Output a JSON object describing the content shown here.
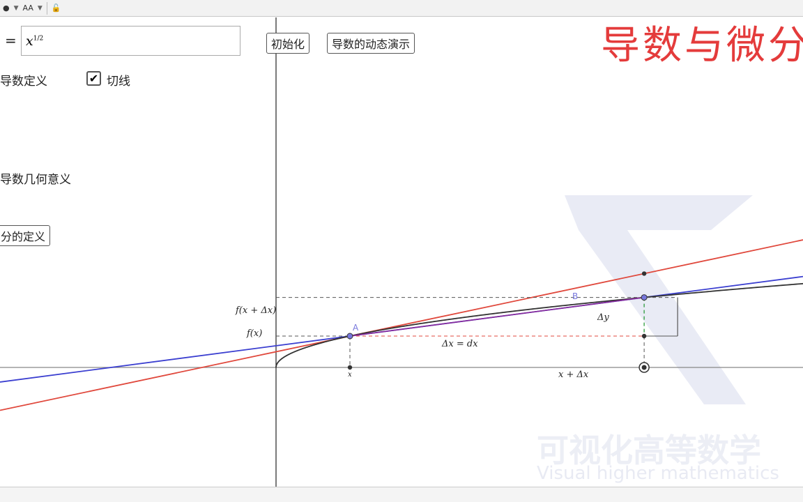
{
  "toolbar": {
    "point_style_icon": "dot-icon",
    "text_size_label": "AA",
    "lock_icon": "unlock-icon"
  },
  "input": {
    "eq": "=",
    "base": "x",
    "exponent": "1/2"
  },
  "checkboxes": [
    {
      "label": "导数定义",
      "checked": false
    },
    {
      "label": "切线",
      "checked": true
    }
  ],
  "labels": {
    "geometric": "导数几何意义"
  },
  "buttons": {
    "init": "初始化",
    "demo": "导数的动态演示",
    "diff_def": "分的定义"
  },
  "title": "导数与微分",
  "watermark": {
    "cn": "可视化高等数学",
    "en": "Visual higher mathematics"
  },
  "graph": {
    "function": "sqrt(x)",
    "point_A": {
      "label": "A",
      "x": 5.55
    },
    "point_B": {
      "label": "B",
      "x": 27.65
    },
    "labels": {
      "fx": "f(x)",
      "fxdx": "f(x + Δx)",
      "dx_eq": "Δx = dx",
      "dy": "Δy",
      "x": "x",
      "xdx": "x + Δx"
    },
    "colors": {
      "curve": "#333333",
      "tangent": "#e0483c",
      "secant": "#3b3fd0",
      "chord": "#8a2a9a",
      "points": "#7777dd"
    }
  }
}
